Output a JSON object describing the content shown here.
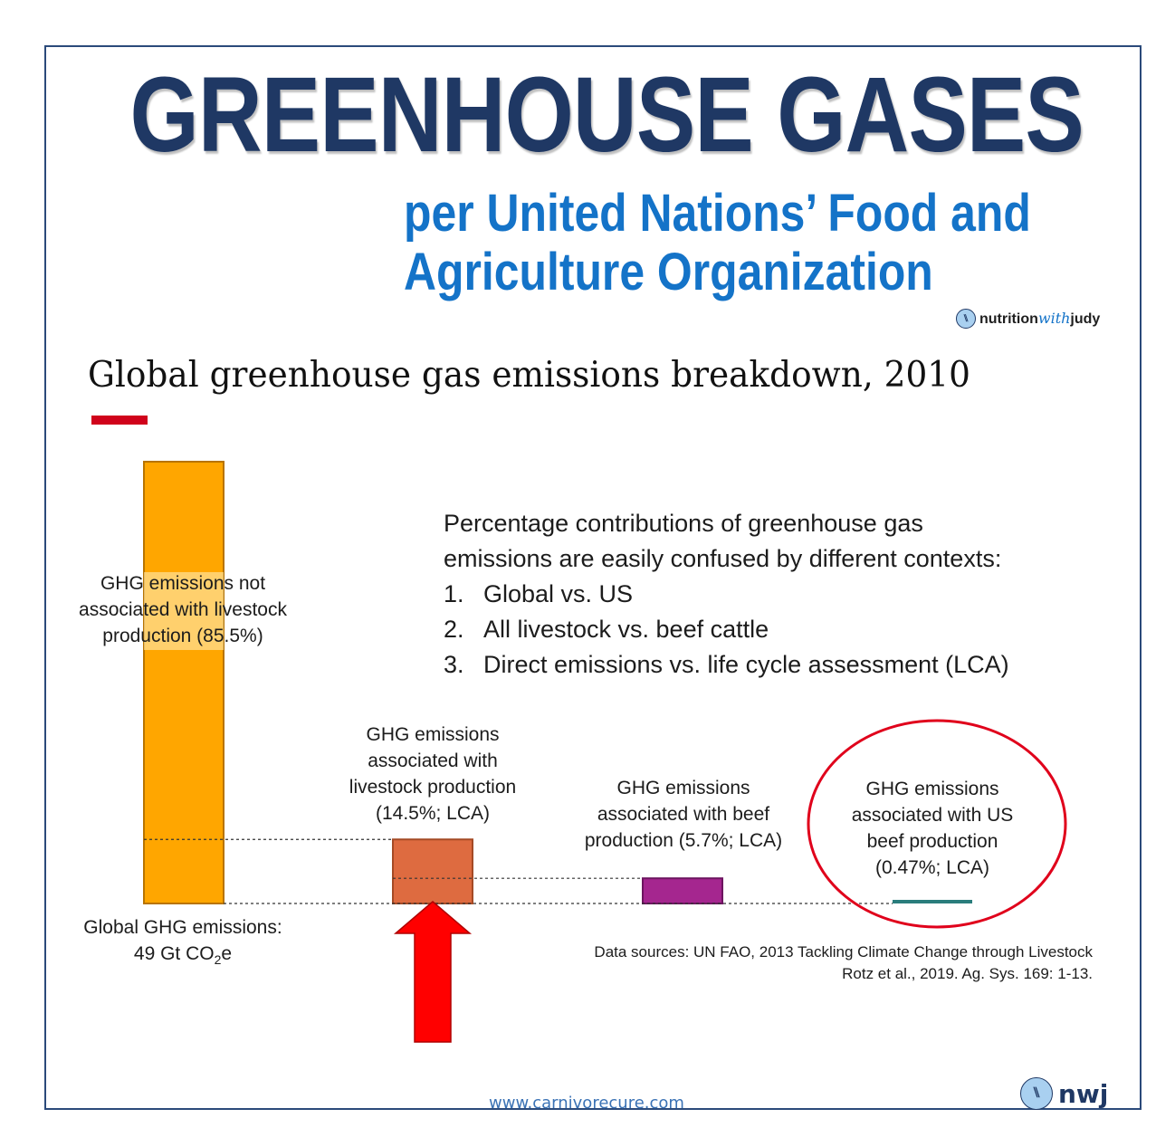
{
  "header": {
    "title": "GREENHOUSE GASES",
    "subtitle_line1": "per United Nations’ Food and",
    "subtitle_line2": "Agriculture Organization",
    "brand_part1": "nutrition",
    "brand_part2": "with",
    "brand_part3": "judy"
  },
  "chart_data": {
    "type": "bar",
    "title": "Global greenhouse gas emissions breakdown, 2010",
    "categories": [
      "GHG emissions not associated with livestock production (85.5%)",
      "GHG emissions associated with livestock production (14.5%; LCA)",
      "GHG emissions associated with beef production (5.7%; LCA)",
      "GHG emissions associated with US beef production (0.47%; LCA)"
    ],
    "values": [
      85.5,
      14.5,
      5.7,
      0.47
    ],
    "unit": "% of global GHG emissions",
    "colors": [
      "#ffa600",
      "#de6b40",
      "#a5268f",
      "#2a7d7c"
    ],
    "labels": {
      "global_bar_lines": [
        "GHG emissions not",
        "associated with livestock",
        "production (85.5%)"
      ],
      "global_total_line1": "Global GHG emissions:",
      "global_total_line2_prefix": "49 Gt CO",
      "global_total_line2_sub": "2",
      "global_total_line2_suffix": "e",
      "livestock_lines": [
        "GHG emissions",
        "associated with",
        "livestock production",
        "(14.5%; LCA)"
      ],
      "beef_lines": [
        "GHG emissions",
        "associated with beef",
        "production (5.7%; LCA)"
      ],
      "us_beef_lines": [
        "GHG emissions",
        "associated with US",
        "beef production",
        "(0.47%; LCA)"
      ]
    },
    "highlight_colors": {
      "arrow": "#ff0000",
      "circle": "#e0001b"
    }
  },
  "note": {
    "intro_line1": "Percentage contributions of greenhouse gas",
    "intro_line2": "emissions are easily confused by different contexts:",
    "items": [
      {
        "num": "1.",
        "text": "Global vs. US"
      },
      {
        "num": "2.",
        "text": "All livestock vs. beef cattle"
      },
      {
        "num": "3.",
        "text": "Direct emissions vs. life cycle assessment (LCA)"
      }
    ]
  },
  "sources": {
    "line1": "Data sources: UN FAO, 2013 Tackling Climate Change through Livestock",
    "line2": "Rotz et al., 2019. Ag. Sys. 169: 1-13."
  },
  "footer": {
    "website": "www.carnivorecure.com",
    "brand_short": "nwj"
  }
}
